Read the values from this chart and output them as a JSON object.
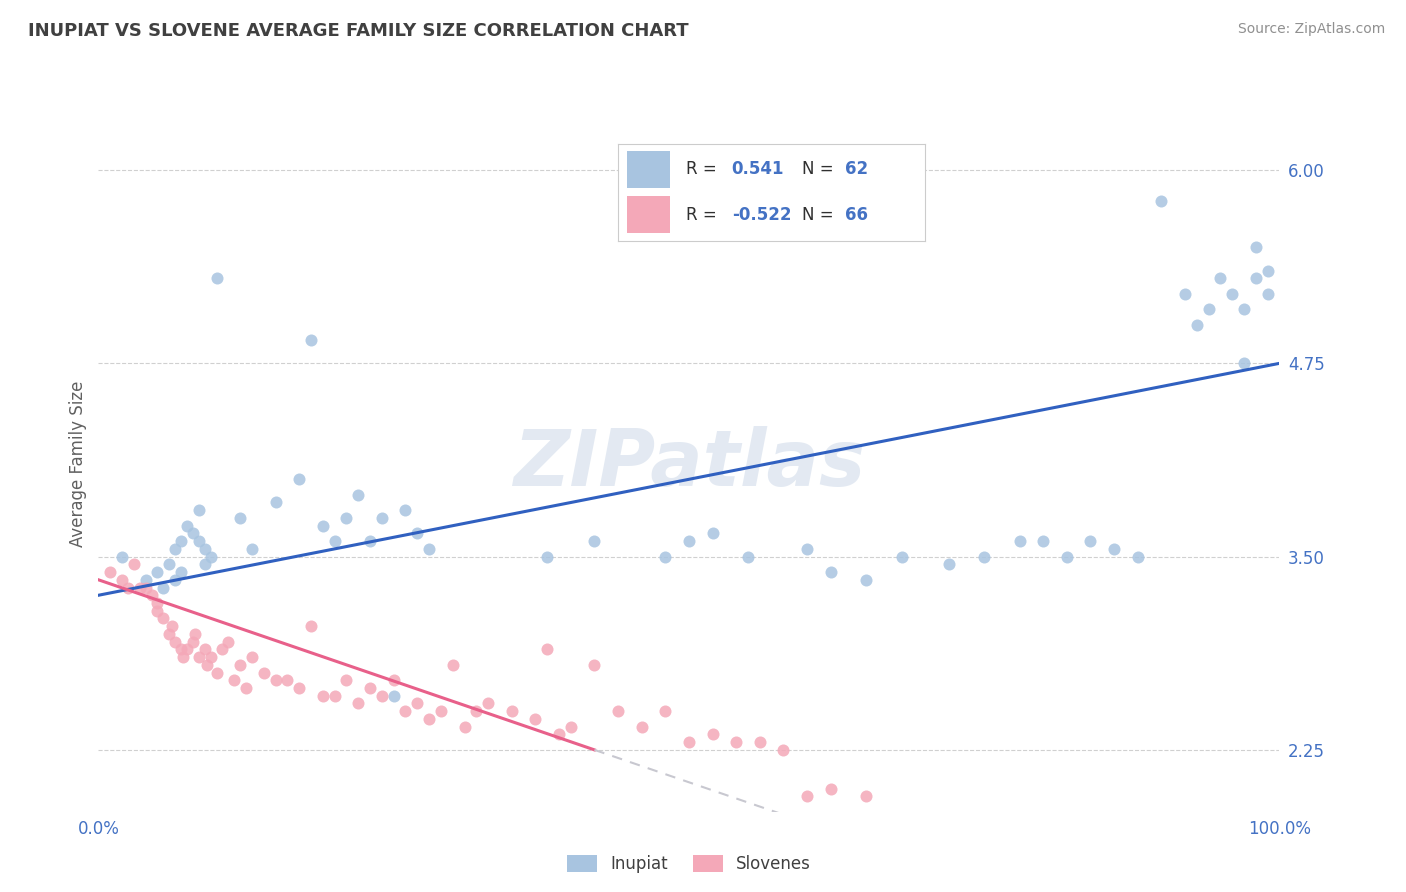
{
  "title": "INUPIAT VS SLOVENE AVERAGE FAMILY SIZE CORRELATION CHART",
  "source": "Source: ZipAtlas.com",
  "ylabel": "Average Family Size",
  "watermark": "ZIPatlas",
  "xlim": [
    0.0,
    1.0
  ],
  "ylim": [
    1.85,
    6.35
  ],
  "yticks": [
    2.25,
    3.5,
    4.75,
    6.0
  ],
  "yticklabels": [
    "2.25",
    "3.50",
    "4.75",
    "6.00"
  ],
  "xticks": [
    0.0,
    1.0
  ],
  "xticklabels": [
    "0.0%",
    "100.0%"
  ],
  "inupiat_R": 0.541,
  "inupiat_N": 62,
  "slovene_R": -0.522,
  "slovene_N": 66,
  "inupiat_color": "#a8c4e0",
  "slovene_color": "#f4a8b8",
  "inupiat_line_color": "#3060c0",
  "slovene_line_color": "#e8608a",
  "slovene_line_dash_color": "#c8c8d0",
  "title_color": "#404040",
  "source_color": "#909090",
  "axis_tick_color": "#4472c4",
  "ylabel_color": "#606060",
  "grid_color": "#d0d0d0",
  "background_color": "#ffffff",
  "inupiat_x": [
    0.02,
    0.04,
    0.05,
    0.055,
    0.06,
    0.065,
    0.065,
    0.07,
    0.07,
    0.075,
    0.08,
    0.085,
    0.085,
    0.09,
    0.09,
    0.095,
    0.1,
    0.12,
    0.13,
    0.15,
    0.17,
    0.18,
    0.19,
    0.2,
    0.21,
    0.22,
    0.23,
    0.24,
    0.25,
    0.26,
    0.27,
    0.28,
    0.38,
    0.42,
    0.48,
    0.5,
    0.52,
    0.55,
    0.6,
    0.62,
    0.65,
    0.68,
    0.72,
    0.75,
    0.78,
    0.8,
    0.82,
    0.84,
    0.86,
    0.88,
    0.9,
    0.92,
    0.93,
    0.94,
    0.95,
    0.96,
    0.97,
    0.97,
    0.98,
    0.98,
    0.99,
    0.99
  ],
  "inupiat_y": [
    3.5,
    3.35,
    3.4,
    3.3,
    3.45,
    3.55,
    3.35,
    3.6,
    3.4,
    3.7,
    3.65,
    3.8,
    3.6,
    3.55,
    3.45,
    3.5,
    5.3,
    3.75,
    3.55,
    3.85,
    4.0,
    4.9,
    3.7,
    3.6,
    3.75,
    3.9,
    3.6,
    3.75,
    2.6,
    3.8,
    3.65,
    3.55,
    3.5,
    3.6,
    3.5,
    3.6,
    3.65,
    3.5,
    3.55,
    3.4,
    3.35,
    3.5,
    3.45,
    3.5,
    3.6,
    3.6,
    3.5,
    3.6,
    3.55,
    3.5,
    5.8,
    5.2,
    5.0,
    5.1,
    5.3,
    5.2,
    4.75,
    5.1,
    5.5,
    5.3,
    5.2,
    5.35
  ],
  "slovene_x": [
    0.01,
    0.02,
    0.025,
    0.03,
    0.035,
    0.04,
    0.045,
    0.05,
    0.05,
    0.055,
    0.06,
    0.062,
    0.065,
    0.07,
    0.072,
    0.075,
    0.08,
    0.082,
    0.085,
    0.09,
    0.092,
    0.095,
    0.1,
    0.105,
    0.11,
    0.115,
    0.12,
    0.125,
    0.13,
    0.14,
    0.15,
    0.16,
    0.17,
    0.18,
    0.19,
    0.2,
    0.21,
    0.22,
    0.23,
    0.24,
    0.25,
    0.26,
    0.27,
    0.28,
    0.29,
    0.3,
    0.31,
    0.32,
    0.33,
    0.35,
    0.37,
    0.38,
    0.39,
    0.4,
    0.42,
    0.44,
    0.46,
    0.48,
    0.5,
    0.52,
    0.54,
    0.56,
    0.58,
    0.6,
    0.62,
    0.65
  ],
  "slovene_y": [
    3.4,
    3.35,
    3.3,
    3.45,
    3.3,
    3.3,
    3.25,
    3.2,
    3.15,
    3.1,
    3.0,
    3.05,
    2.95,
    2.9,
    2.85,
    2.9,
    2.95,
    3.0,
    2.85,
    2.9,
    2.8,
    2.85,
    2.75,
    2.9,
    2.95,
    2.7,
    2.8,
    2.65,
    2.85,
    2.75,
    2.7,
    2.7,
    2.65,
    3.05,
    2.6,
    2.6,
    2.7,
    2.55,
    2.65,
    2.6,
    2.7,
    2.5,
    2.55,
    2.45,
    2.5,
    2.8,
    2.4,
    2.5,
    2.55,
    2.5,
    2.45,
    2.9,
    2.35,
    2.4,
    2.8,
    2.5,
    2.4,
    2.5,
    2.3,
    2.35,
    2.3,
    2.3,
    2.25,
    1.95,
    2.0,
    1.95
  ]
}
